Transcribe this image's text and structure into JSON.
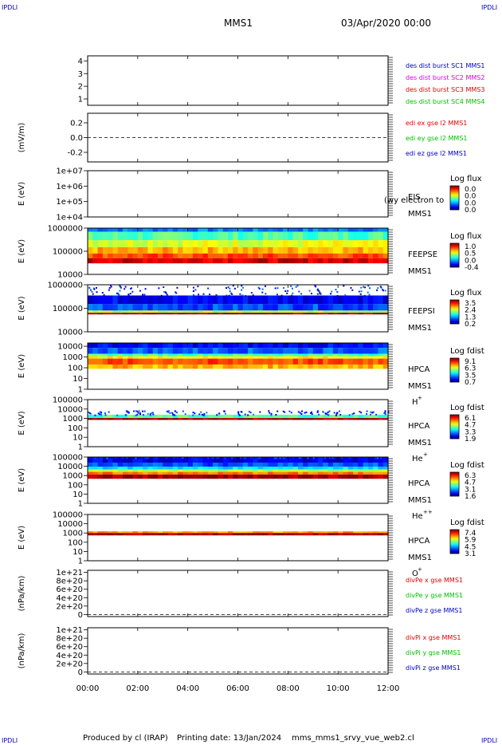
{
  "header": {
    "corner_label": "IPDLI",
    "title": "MMS1",
    "date": "03/Apr/2020 00:00"
  },
  "footer": {
    "produced_by": "Produced by cl (IRAP)",
    "printing_date": "Printing date: 13/Jan/2024",
    "filename": "mms_mms1_srvy_vue_web2.cl"
  },
  "colors": {
    "blue": "#0000c0",
    "magenta": "#e000e0",
    "red": "#e00000",
    "green": "#00c000"
  },
  "chart_data": [
    {
      "type": "line",
      "panel": "dist-burst",
      "ylabel": "",
      "ylim": [
        0.5,
        4.4
      ],
      "yticks": [
        "1",
        "2",
        "3",
        "4"
      ],
      "legend": [
        {
          "label": "des dist burst SC1 MMS1",
          "color": "#0000c0"
        },
        {
          "label": "des dist burst SC2 MMS2",
          "color": "#e000e0"
        },
        {
          "label": "des dist burst SC3 MMS3",
          "color": "#e00000"
        },
        {
          "label": "des dist burst SC4 MMS4",
          "color": "#00c000"
        }
      ],
      "series": []
    },
    {
      "type": "line",
      "panel": "edi-e",
      "ylabel": "(mV/m)",
      "ylim": [
        -0.33,
        0.33
      ],
      "yticks": [
        "0.2",
        "0.0",
        "-0.2"
      ],
      "dashed_zero": true,
      "legend": [
        {
          "label": "edi ex gse l2 MMS1",
          "color": "#e00000"
        },
        {
          "label": "edi ey gse l2 MMS1",
          "color": "#00c000"
        },
        {
          "label": "edi ez gse l2 MMS1",
          "color": "#0000c0"
        }
      ],
      "series": []
    },
    {
      "type": "heatmap",
      "panel": "eis",
      "ylabel": "E (eV)",
      "yscale": "log",
      "ylim": [
        10000.0,
        10000000.0
      ],
      "yticks": [
        "1e+07",
        "1e+06",
        "1e+05",
        "1e+04"
      ],
      "labels": [
        "EIS",
        "MMS1"
      ],
      "overlay_text": "(wy electron to",
      "colorbar": {
        "title": "Log flux",
        "ticks": [
          "0.0",
          "0.0",
          "0.0",
          "0.0"
        ]
      },
      "data_rows": []
    },
    {
      "type": "heatmap",
      "panel": "feepse",
      "ylabel": "E (eV)",
      "yscale": "log",
      "ylim": [
        10000,
        1000000
      ],
      "yticks": [
        "1000000",
        "100000",
        "10000"
      ],
      "labels": [
        "FEEPSE",
        "MMS1"
      ],
      "colorbar": {
        "title": "Log flux",
        "ticks": [
          "1.0",
          "0.5",
          "0.0",
          "-0.4"
        ]
      },
      "data_rows": [
        {
          "E_range": [
            700000,
            1000000
          ],
          "level": 0.25
        },
        {
          "E_range": [
            300000,
            700000
          ],
          "level": 0.45
        },
        {
          "E_range": [
            150000,
            300000
          ],
          "level": 0.6
        },
        {
          "E_range": [
            80000,
            150000
          ],
          "level": 0.7
        },
        {
          "E_range": [
            50000,
            80000
          ],
          "level": 0.8
        },
        {
          "E_range": [
            30000,
            50000
          ],
          "level": 0.92
        }
      ]
    },
    {
      "type": "heatmap",
      "panel": "feepsi",
      "ylabel": "E (eV)",
      "yscale": "log",
      "ylim": [
        10000,
        1000000
      ],
      "yticks": [
        "1000000",
        "100000",
        "10000"
      ],
      "labels": [
        "FEEPSI",
        "MMS1"
      ],
      "colorbar": {
        "title": "Log flux",
        "ticks": [
          "3.5",
          "2.4",
          "1.3",
          "0.2"
        ]
      },
      "data_rows": [
        {
          "E_range": [
            150000,
            350000
          ],
          "level": 0.12
        },
        {
          "E_range": [
            80000,
            150000
          ],
          "level": 0.2
        },
        {
          "E_range": [
            65000,
            80000
          ],
          "level": 0.55
        },
        {
          "E_range": [
            55000,
            65000
          ],
          "level": 0.97
        }
      ]
    },
    {
      "type": "heatmap",
      "panel": "hpca-h",
      "ylabel": "E (eV)",
      "yscale": "log",
      "ylim": [
        1,
        20000
      ],
      "yticks": [
        "10000",
        "1000",
        "100",
        "10",
        "1"
      ],
      "labels": [
        "HPCA",
        "MMS1",
        "H+"
      ],
      "species": {
        "base": "H",
        "sup": "+"
      },
      "colorbar": {
        "title": "Log fdist",
        "ticks": [
          "9.1",
          "6.3",
          "3.5",
          "0.7"
        ]
      },
      "data_rows": [
        {
          "E_range": [
            7000,
            20000
          ],
          "level": 0.12
        },
        {
          "E_range": [
            2000,
            7000
          ],
          "level": 0.22
        },
        {
          "E_range": [
            1200,
            2000
          ],
          "level": 0.45
        },
        {
          "E_range": [
            700,
            1200
          ],
          "level": 0.62
        },
        {
          "E_range": [
            200,
            700
          ],
          "level": 0.8
        },
        {
          "E_range": [
            80,
            200
          ],
          "level": 0.7
        }
      ]
    },
    {
      "type": "heatmap",
      "panel": "hpca-he",
      "ylabel": "E (eV)",
      "yscale": "log",
      "ylim": [
        1,
        100000
      ],
      "yticks": [
        "100000",
        "10000",
        "1000",
        "100",
        "10",
        "1"
      ],
      "labels": [
        "HPCA",
        "MMS1",
        "He+"
      ],
      "species": {
        "base": "He",
        "sup": "+"
      },
      "colorbar": {
        "title": "Log fdist",
        "ticks": [
          "6.1",
          "4.7",
          "3.3",
          "1.9"
        ]
      },
      "data_rows": [
        {
          "E_range": [
            1100,
            2500
          ],
          "level": 0.45
        },
        {
          "E_range": [
            700,
            1100
          ],
          "level": 0.97
        }
      ]
    },
    {
      "type": "heatmap",
      "panel": "hpca-hepp",
      "ylabel": "E (eV)",
      "yscale": "log",
      "ylim": [
        1,
        100000
      ],
      "yticks": [
        "100000",
        "10000",
        "1000",
        "100",
        "10",
        "1"
      ],
      "labels": [
        "HPCA",
        "MMS1",
        "He++"
      ],
      "species": {
        "base": "He",
        "sup": "++"
      },
      "colorbar": {
        "title": "Log fdist",
        "ticks": [
          "6.3",
          "4.7",
          "3.1",
          "1.6"
        ]
      },
      "data_rows": [
        {
          "E_range": [
            25000,
            90000
          ],
          "level": 0.1
        },
        {
          "E_range": [
            9000,
            25000
          ],
          "level": 0.2
        },
        {
          "E_range": [
            4500,
            9000
          ],
          "level": 0.35
        },
        {
          "E_range": [
            2500,
            4500
          ],
          "level": 0.55
        },
        {
          "E_range": [
            1300,
            2500
          ],
          "level": 0.75
        },
        {
          "E_range": [
            450,
            1300
          ],
          "level": 0.97
        }
      ]
    },
    {
      "type": "heatmap",
      "panel": "hpca-o",
      "ylabel": "E (eV)",
      "yscale": "log",
      "ylim": [
        1,
        100000
      ],
      "yticks": [
        "100000",
        "10000",
        "1000",
        "100",
        "10",
        "1"
      ],
      "labels": [
        "HPCA",
        "MMS1",
        "O+"
      ],
      "species": {
        "base": "O",
        "sup": "+"
      },
      "colorbar": {
        "title": "Log fdist",
        "ticks": [
          "7.4",
          "5.9",
          "4.5",
          "3.1"
        ]
      },
      "data_rows": [
        {
          "E_range": [
            1000,
            1500
          ],
          "level": 0.72
        },
        {
          "E_range": [
            550,
            1000
          ],
          "level": 0.97
        }
      ]
    },
    {
      "type": "line",
      "panel": "divpe",
      "ylabel": "(nPa/km)",
      "ylim": [
        -5e+19,
        1.05e+21
      ],
      "yticks": [
        "1e+21",
        "8e+20",
        "6e+20",
        "4e+20",
        "2e+20",
        "0"
      ],
      "dashed_zero": true,
      "legend": [
        {
          "label": "divPe x gse MMS1",
          "color": "#e00000"
        },
        {
          "label": "divPe y gse MMS1",
          "color": "#00c000"
        },
        {
          "label": "divPe z gse MMS1",
          "color": "#0000c0"
        }
      ],
      "series": []
    },
    {
      "type": "line",
      "panel": "divpi",
      "ylabel": "(nPa/km)",
      "ylim": [
        -5e+19,
        1.05e+21
      ],
      "yticks": [
        "1e+21",
        "8e+20",
        "6e+20",
        "4e+20",
        "2e+20",
        "0"
      ],
      "dashed_zero": true,
      "legend": [
        {
          "label": "divPi x gse MMS1",
          "color": "#e00000"
        },
        {
          "label": "divPi y gse MMS1",
          "color": "#00c000"
        },
        {
          "label": "divPi z gse MMS1",
          "color": "#0000c0"
        }
      ],
      "series": []
    }
  ],
  "x_axis": {
    "ticks": [
      "00:00",
      "02:00",
      "04:00",
      "06:00",
      "08:00",
      "10:00",
      "12:00"
    ]
  }
}
